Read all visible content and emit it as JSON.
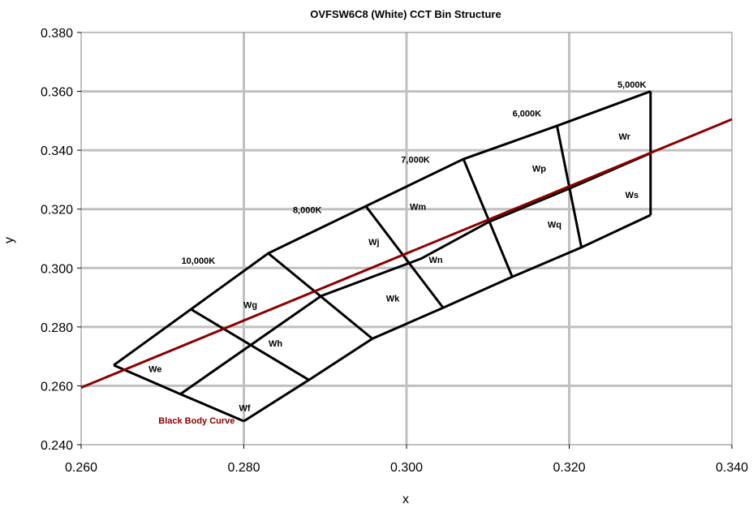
{
  "chart_data": {
    "type": "line",
    "title": "OVFSW6C8 (White) CCT Bin Structure",
    "xlabel": "x",
    "ylabel": "y",
    "xlim": [
      0.26,
      0.34
    ],
    "ylim": [
      0.24,
      0.38
    ],
    "x_ticks": [
      "0.260",
      "0.280",
      "0.300",
      "0.320",
      "0.340"
    ],
    "y_ticks": [
      "0.240",
      "0.260",
      "0.280",
      "0.300",
      "0.320",
      "0.340",
      "0.360",
      "0.380"
    ],
    "x_tick_values": [
      0.26,
      0.28,
      0.3,
      0.32,
      0.34
    ],
    "y_tick_values": [
      0.24,
      0.26,
      0.28,
      0.3,
      0.32,
      0.34,
      0.36,
      0.38
    ],
    "grid": true,
    "colors": {
      "bins": "#000000",
      "black_body_curve": "#8b0000",
      "grid": "#c0c0c0"
    },
    "black_body_curve": {
      "label": "Black Body Curve",
      "points": [
        [
          0.26,
          0.2594
        ],
        [
          0.34,
          0.3505
        ]
      ]
    },
    "bin_segments": [
      [
        [
          0.264,
          0.267
        ],
        [
          0.283,
          0.305
        ],
        [
          0.295,
          0.321
        ],
        [
          0.307,
          0.337
        ],
        [
          0.3185,
          0.3483
        ],
        [
          0.33,
          0.36
        ]
      ],
      [
        [
          0.2722,
          0.2572
        ],
        [
          0.2895,
          0.2905
        ],
        [
          0.3018,
          0.3032
        ],
        [
          0.31,
          0.3155
        ],
        [
          0.32,
          0.327
        ],
        [
          0.33,
          0.339
        ]
      ],
      [
        [
          0.28,
          0.248
        ],
        [
          0.288,
          0.262
        ],
        [
          0.2958,
          0.276
        ],
        [
          0.3045,
          0.2865
        ],
        [
          0.313,
          0.297
        ],
        [
          0.3215,
          0.307
        ],
        [
          0.33,
          0.318
        ]
      ],
      [
        [
          0.264,
          0.267
        ],
        [
          0.2722,
          0.2572
        ],
        [
          0.28,
          0.248
        ]
      ],
      [
        [
          0.2735,
          0.286
        ],
        [
          0.288,
          0.262
        ]
      ],
      [
        [
          0.283,
          0.305
        ],
        [
          0.2958,
          0.276
        ]
      ],
      [
        [
          0.295,
          0.321
        ],
        [
          0.3045,
          0.2865
        ]
      ],
      [
        [
          0.307,
          0.337
        ],
        [
          0.313,
          0.297
        ]
      ],
      [
        [
          0.3185,
          0.3483
        ],
        [
          0.3215,
          0.307
        ]
      ],
      [
        [
          0.33,
          0.36
        ],
        [
          0.33,
          0.318
        ]
      ]
    ],
    "bins": [
      {
        "name": "We",
        "x": 0.2691,
        "y": 0.2646
      },
      {
        "name": "Wf",
        "x": 0.2801,
        "y": 0.2514
      },
      {
        "name": "Wg",
        "x": 0.2808,
        "y": 0.2865
      },
      {
        "name": "Wh",
        "x": 0.2839,
        "y": 0.2734
      },
      {
        "name": "Wj",
        "x": 0.296,
        "y": 0.3078
      },
      {
        "name": "Wk",
        "x": 0.2983,
        "y": 0.2887
      },
      {
        "name": "Wm",
        "x": 0.3014,
        "y": 0.3198
      },
      {
        "name": "Wn",
        "x": 0.3036,
        "y": 0.3017
      },
      {
        "name": "Wp",
        "x": 0.3163,
        "y": 0.3327
      },
      {
        "name": "Wq",
        "x": 0.3182,
        "y": 0.3137
      },
      {
        "name": "Wr",
        "x": 0.3268,
        "y": 0.3436
      },
      {
        "name": "Ws",
        "x": 0.3277,
        "y": 0.3238
      }
    ],
    "cct_labels": [
      {
        "text": "10,000K",
        "x": 0.2744,
        "y": 0.3014
      },
      {
        "text": "8,000K",
        "x": 0.2878,
        "y": 0.3187
      },
      {
        "text": "7,000K",
        "x": 0.3011,
        "y": 0.3358
      },
      {
        "text": "6,000K",
        "x": 0.3148,
        "y": 0.3515
      },
      {
        "text": "5,000K",
        "x": 0.3277,
        "y": 0.3613
      }
    ],
    "curve_label_pos": {
      "x": 0.2742,
      "y": 0.2472
    }
  }
}
